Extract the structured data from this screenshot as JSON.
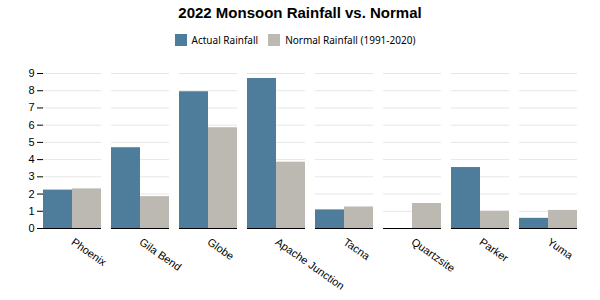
{
  "chart_data": {
    "type": "bar",
    "title": "2022 Monsoon Rainfall vs. Normal",
    "categories": [
      "Phoenix",
      "Gila Bend",
      "Globe",
      "Apache Junction",
      "Tacna",
      "Quartzsite",
      "Parker",
      "Yuma"
    ],
    "series": [
      {
        "name": "Actual Rainfall",
        "color": "#4d7d9a",
        "values": [
          2.23,
          4.69,
          7.94,
          8.71,
          1.08,
          0.0,
          3.54,
          0.59
        ]
      },
      {
        "name": "Normal Rainfall (1991-2020)",
        "color": "#bcb9b3",
        "values": [
          2.3,
          1.85,
          5.85,
          3.85,
          1.25,
          1.45,
          1.0,
          1.05
        ]
      }
    ],
    "ylim": [
      0,
      9
    ],
    "yticks": [
      0,
      1,
      2,
      3,
      4,
      5,
      6,
      7,
      8,
      9
    ],
    "grid": true,
    "legend": "top"
  }
}
